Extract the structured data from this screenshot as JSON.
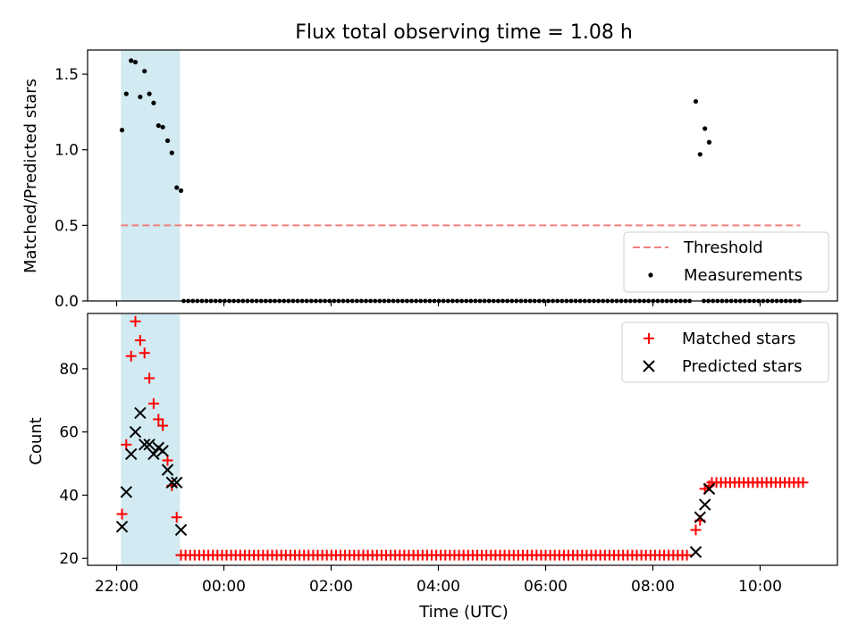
{
  "figure": {
    "title": "Flux total observing time = 1.08 h"
  },
  "chart_data": [
    {
      "type": "scatter",
      "xlabel": "",
      "ylabel": "Matched/Predicted stars",
      "xlim": [
        21.47,
        11.47
      ],
      "ylim": [
        0,
        1.66
      ],
      "yticks": [
        0.0,
        0.5,
        1.0,
        1.5
      ],
      "ytick_labels": [
        "0.0",
        "0.5",
        "1.0",
        "1.5"
      ],
      "shaded_span": {
        "x": [
          22.08,
          23.18
        ],
        "color": "#add8e6"
      },
      "threshold": {
        "name": "Threshold",
        "value": 0.5,
        "x": [
          22.08,
          10.75
        ],
        "color": "#f08080"
      },
      "series": [
        {
          "name": "Measurements",
          "marker": "dot",
          "color": "#000000",
          "points": [
            [
              22.1,
              1.13
            ],
            [
              22.18,
              1.37
            ],
            [
              22.27,
              1.59
            ],
            [
              22.35,
              1.58
            ],
            [
              22.44,
              1.35
            ],
            [
              22.52,
              1.52
            ],
            [
              22.61,
              1.37
            ],
            [
              22.69,
              1.31
            ],
            [
              22.78,
              1.16
            ],
            [
              22.86,
              1.15
            ],
            [
              22.95,
              1.06
            ],
            [
              23.03,
              0.98
            ],
            [
              23.12,
              0.75
            ],
            [
              23.2,
              0.73
            ],
            [
              8.8,
              1.32
            ],
            [
              8.88,
              0.97
            ],
            [
              8.97,
              1.14
            ],
            [
              9.05,
              1.05
            ]
          ],
          "zero_runs": [
            [
              23.25,
              8.7
            ],
            [
              8.95,
              10.8
            ]
          ]
        }
      ],
      "legend": {
        "position": "lower right",
        "entries": [
          "Threshold",
          "Measurements"
        ]
      }
    },
    {
      "type": "scatter",
      "xlabel": "Time (UTC)",
      "ylabel": "Count",
      "xlim": [
        21.47,
        11.47
      ],
      "ylim": [
        17.8,
        97.5
      ],
      "yticks": [
        20,
        40,
        60,
        80
      ],
      "ytick_labels": [
        "20",
        "40",
        "60",
        "80"
      ],
      "xticks": [
        22,
        0,
        2,
        4,
        6,
        8,
        10
      ],
      "xtick_labels": [
        "22:00",
        "00:00",
        "02:00",
        "04:00",
        "06:00",
        "08:00",
        "10:00"
      ],
      "shaded_span": {
        "x": [
          22.08,
          23.18
        ],
        "color": "#add8e6"
      },
      "series": [
        {
          "name": "Matched stars",
          "marker": "plus",
          "color": "#ff0000",
          "points": [
            [
              22.1,
              34
            ],
            [
              22.18,
              56
            ],
            [
              22.27,
              84
            ],
            [
              22.35,
              95
            ],
            [
              22.44,
              89
            ],
            [
              22.52,
              85
            ],
            [
              22.61,
              77
            ],
            [
              22.69,
              69
            ],
            [
              22.78,
              64
            ],
            [
              22.86,
              62
            ],
            [
              22.95,
              51
            ],
            [
              23.03,
              43
            ],
            [
              23.12,
              33
            ],
            [
              23.2,
              21
            ],
            [
              8.8,
              29
            ],
            [
              8.88,
              32
            ],
            [
              8.97,
              42
            ],
            [
              9.05,
              43
            ]
          ],
          "flat_runs": [
            {
              "y": 21,
              "x": [
                23.2,
                8.7
              ]
            },
            {
              "y": 44,
              "x": [
                9.1,
                10.8
              ]
            }
          ]
        },
        {
          "name": "Predicted stars",
          "marker": "x",
          "color": "#000000",
          "points": [
            [
              22.1,
              30
            ],
            [
              22.18,
              41
            ],
            [
              22.27,
              53
            ],
            [
              22.35,
              60
            ],
            [
              22.44,
              66
            ],
            [
              22.52,
              56
            ],
            [
              22.61,
              56
            ],
            [
              22.69,
              53
            ],
            [
              22.78,
              55
            ],
            [
              22.86,
              54
            ],
            [
              22.95,
              48
            ],
            [
              23.03,
              44
            ],
            [
              23.12,
              44
            ],
            [
              23.2,
              29
            ],
            [
              8.8,
              22
            ],
            [
              8.88,
              33
            ],
            [
              8.97,
              37
            ],
            [
              9.05,
              42
            ]
          ]
        }
      ],
      "legend": {
        "position": "upper right",
        "entries": [
          "Matched stars",
          "Predicted stars"
        ]
      }
    }
  ]
}
